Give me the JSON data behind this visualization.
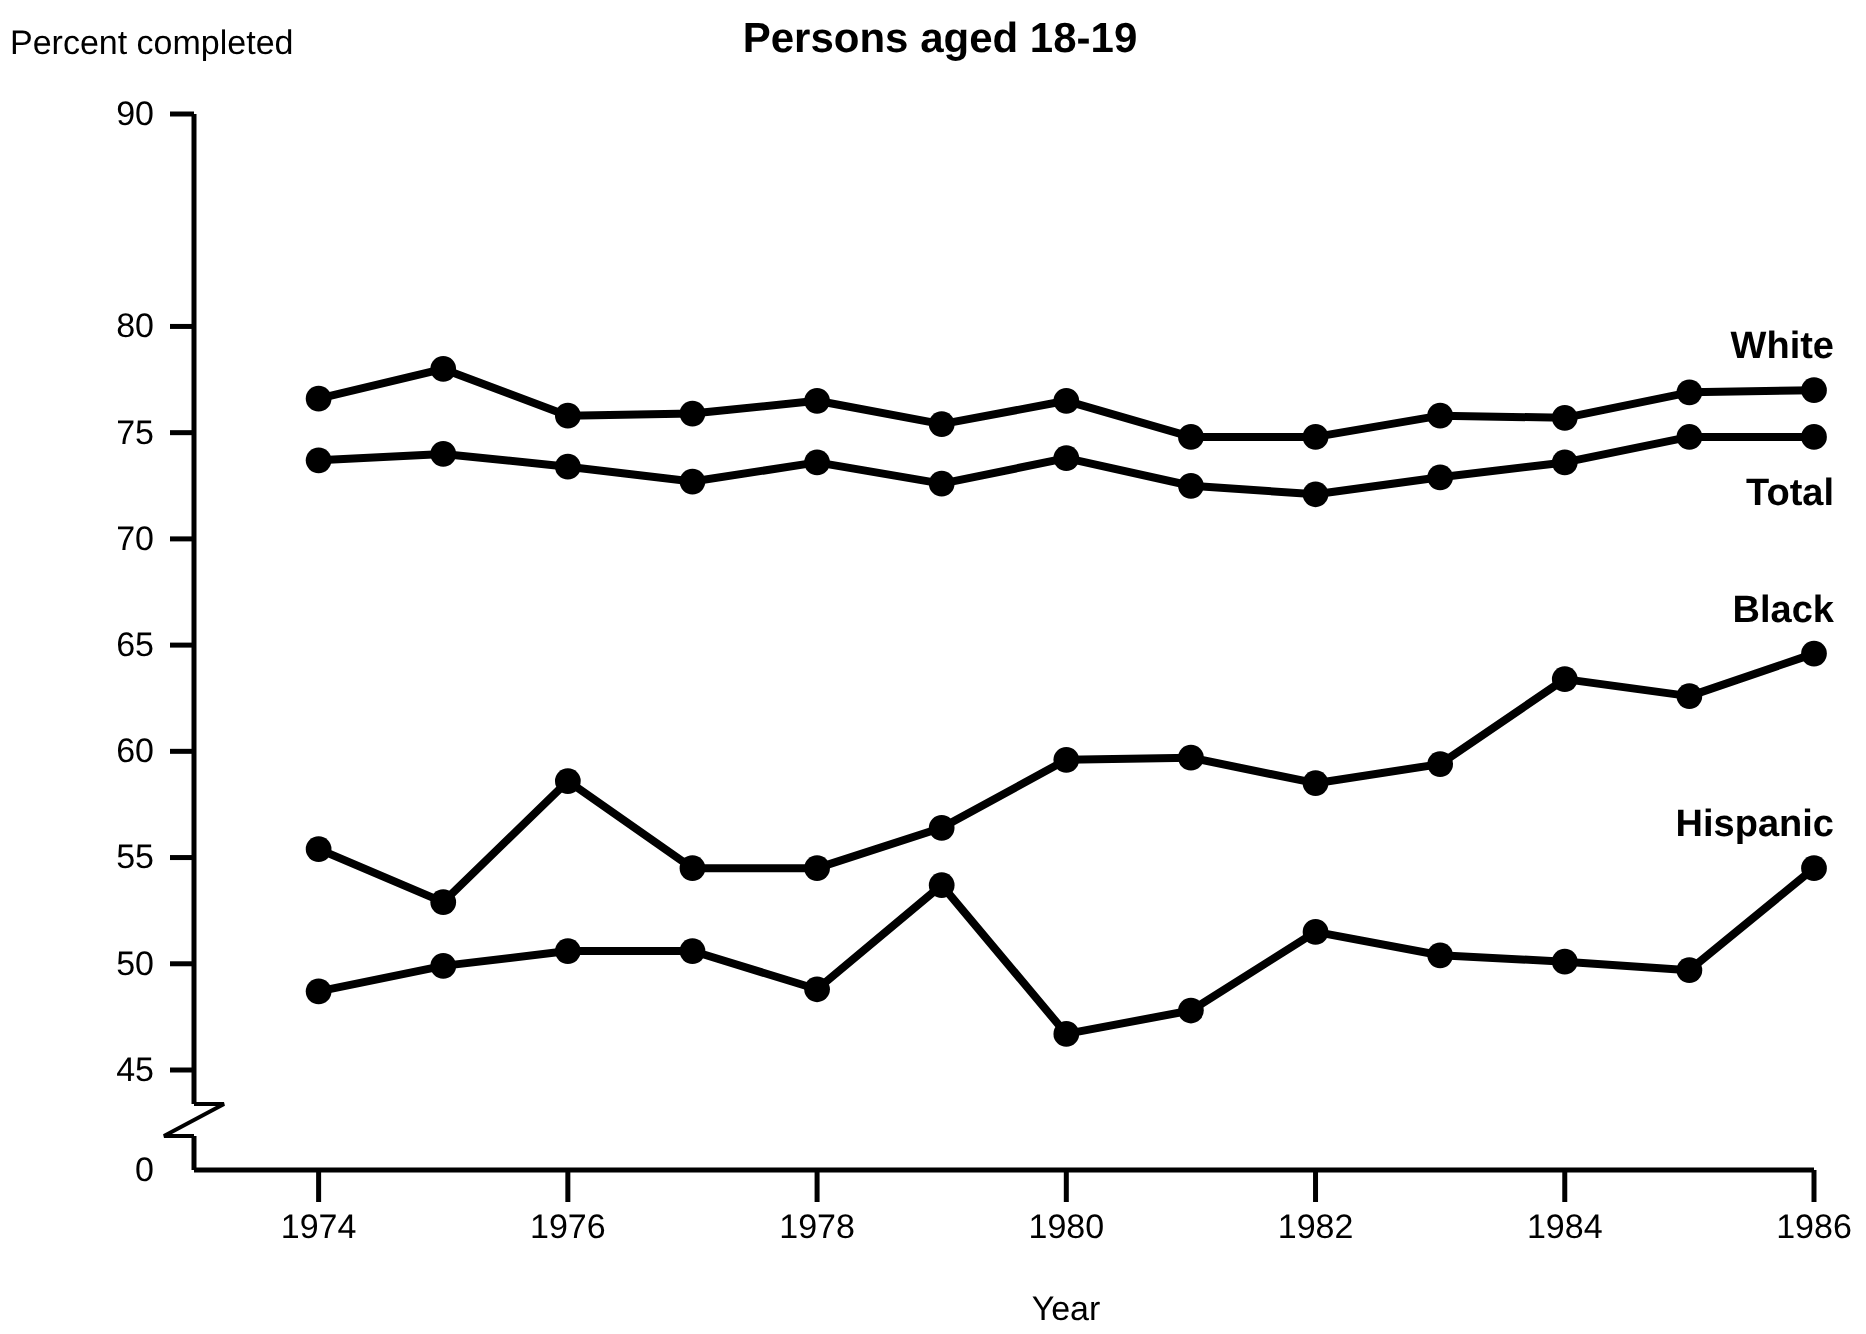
{
  "chart_data": {
    "type": "line",
    "title": "Persons aged 18-19",
    "ylabel": "Percent completed",
    "xlabel": "Year",
    "x": [
      1974,
      1975,
      1976,
      1977,
      1978,
      1979,
      1980,
      1981,
      1982,
      1983,
      1984,
      1985,
      1986
    ],
    "xlim": [
      1973,
      1986
    ],
    "xticks": [
      1974,
      1976,
      1978,
      1980,
      1982,
      1984,
      1986
    ],
    "ylim": [
      45,
      90
    ],
    "yticks": [
      45,
      50,
      55,
      60,
      65,
      70,
      75,
      80,
      90
    ],
    "annotations": [
      "0"
    ],
    "series": [
      {
        "name": "White",
        "color": "#000000",
        "values": [
          76.6,
          78.0,
          75.8,
          75.9,
          76.5,
          75.4,
          76.5,
          74.8,
          74.8,
          75.8,
          75.7,
          76.9,
          77.0
        ]
      },
      {
        "name": "Total",
        "color": "#000000",
        "values": [
          73.7,
          74.0,
          73.4,
          72.7,
          73.6,
          72.6,
          73.8,
          72.5,
          72.1,
          72.9,
          73.6,
          74.8,
          74.8
        ]
      },
      {
        "name": "Black",
        "color": "#000000",
        "values": [
          55.4,
          52.9,
          58.6,
          54.5,
          54.5,
          56.4,
          59.6,
          59.7,
          58.5,
          59.4,
          63.4,
          62.6,
          64.6
        ]
      },
      {
        "name": "Hispanic",
        "color": "#000000",
        "values": [
          48.7,
          49.9,
          50.6,
          50.6,
          48.8,
          53.7,
          46.7,
          47.8,
          51.5,
          50.4,
          50.1,
          49.7,
          54.5
        ]
      }
    ],
    "marker": "circle",
    "line_style": "solid",
    "legend": false,
    "grid": false
  }
}
